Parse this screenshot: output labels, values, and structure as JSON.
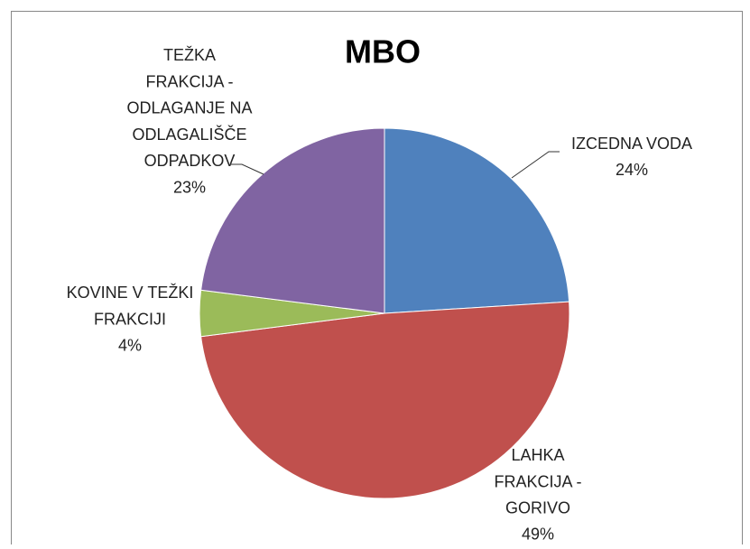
{
  "chart_data": {
    "type": "pie",
    "title": "MBO",
    "categories": [
      "IZCEDNA VODA",
      "LAHKA FRAKCIJA - GORIVO",
      "KOVINE V TEŽKI FRAKCIJI",
      "TEŽKA FRAKCIJA - ODLAGANJE NA ODLAGALIŠČE ODPADKOV"
    ],
    "values": [
      24,
      49,
      4,
      23
    ],
    "value_labels": [
      "24%",
      "49%",
      "4%",
      "23%"
    ],
    "colors": [
      "#4f81bd",
      "#c0504d",
      "#9bbb59",
      "#8064a2"
    ]
  }
}
